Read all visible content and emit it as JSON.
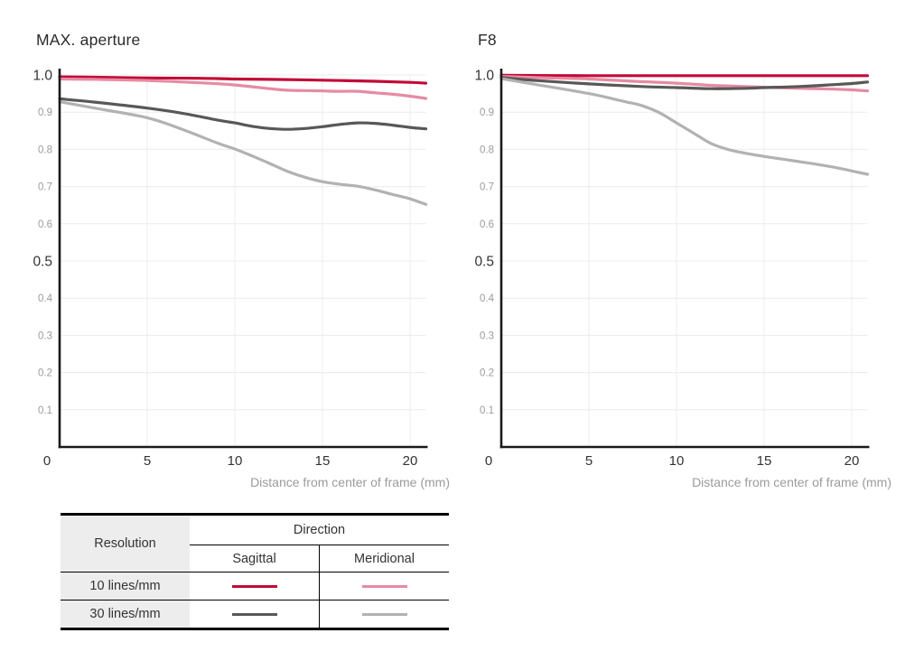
{
  "chart_data": [
    {
      "type": "line",
      "title": "MAX. aperture",
      "xlabel": "Distance from center of frame (mm)",
      "xlim": [
        0,
        20.9
      ],
      "ylim": [
        0,
        1.0
      ],
      "grid": true,
      "x_ticks": [
        {
          "value": 0,
          "label": "0"
        },
        {
          "value": 5,
          "label": "5"
        },
        {
          "value": 10,
          "label": "10"
        },
        {
          "value": 15,
          "label": "15"
        },
        {
          "value": 20,
          "label": "20"
        }
      ],
      "y_ticks": [
        {
          "value": 1.0,
          "label": "1.0",
          "major": true
        },
        {
          "value": 0.9,
          "label": "0.9",
          "major": false
        },
        {
          "value": 0.8,
          "label": "0.8",
          "major": false
        },
        {
          "value": 0.7,
          "label": "0.7",
          "major": false
        },
        {
          "value": 0.6,
          "label": "0.6",
          "major": false
        },
        {
          "value": 0.5,
          "label": "0.5",
          "major": true
        },
        {
          "value": 0.4,
          "label": "0.4",
          "major": false
        },
        {
          "value": 0.3,
          "label": "0.3",
          "major": false
        },
        {
          "value": 0.2,
          "label": "0.2",
          "major": false
        },
        {
          "value": 0.1,
          "label": "0.1",
          "major": false
        }
      ],
      "series": [
        {
          "name": "10 lines/mm Sagittal",
          "resolution": "10 lines/mm",
          "direction": "Sagittal",
          "color": "#c20a38",
          "points": [
            [
              0,
              0.995
            ],
            [
              2,
              0.994
            ],
            [
              5,
              0.992
            ],
            [
              8,
              0.991
            ],
            [
              10,
              0.989
            ],
            [
              12,
              0.988
            ],
            [
              15,
              0.986
            ],
            [
              18,
              0.983
            ],
            [
              20,
              0.98
            ],
            [
              20.9,
              0.978
            ]
          ]
        },
        {
          "name": "10 lines/mm Meridional",
          "resolution": "10 lines/mm",
          "direction": "Meridional",
          "color": "#e68ba2",
          "points": [
            [
              0,
              0.989
            ],
            [
              2,
              0.988
            ],
            [
              5,
              0.985
            ],
            [
              8,
              0.979
            ],
            [
              10,
              0.973
            ],
            [
              12,
              0.963
            ],
            [
              13,
              0.959
            ],
            [
              14,
              0.958
            ],
            [
              15,
              0.957
            ],
            [
              16,
              0.956
            ],
            [
              17,
              0.956
            ],
            [
              18,
              0.952
            ],
            [
              19,
              0.948
            ],
            [
              20,
              0.943
            ],
            [
              20.9,
              0.937
            ]
          ]
        },
        {
          "name": "30 lines/mm Sagittal",
          "resolution": "30 lines/mm",
          "direction": "Sagittal",
          "color": "#585858",
          "points": [
            [
              0,
              0.936
            ],
            [
              2,
              0.927
            ],
            [
              5,
              0.911
            ],
            [
              7,
              0.897
            ],
            [
              9,
              0.879
            ],
            [
              10,
              0.871
            ],
            [
              11,
              0.862
            ],
            [
              12,
              0.856
            ],
            [
              13,
              0.854
            ],
            [
              14,
              0.856
            ],
            [
              15,
              0.861
            ],
            [
              16,
              0.867
            ],
            [
              17,
              0.871
            ],
            [
              18,
              0.87
            ],
            [
              19,
              0.865
            ],
            [
              20,
              0.859
            ],
            [
              20.9,
              0.855
            ]
          ]
        },
        {
          "name": "30 lines/mm Meridional",
          "resolution": "30 lines/mm",
          "direction": "Meridional",
          "color": "#b2b2b2",
          "points": [
            [
              0,
              0.928
            ],
            [
              2,
              0.911
            ],
            [
              5,
              0.885
            ],
            [
              7,
              0.854
            ],
            [
              9,
              0.817
            ],
            [
              10,
              0.801
            ],
            [
              11,
              0.782
            ],
            [
              12,
              0.762
            ],
            [
              13,
              0.741
            ],
            [
              14,
              0.725
            ],
            [
              15,
              0.713
            ],
            [
              16,
              0.706
            ],
            [
              17,
              0.701
            ],
            [
              18,
              0.691
            ],
            [
              19,
              0.679
            ],
            [
              20,
              0.667
            ],
            [
              20.9,
              0.652
            ]
          ]
        }
      ]
    },
    {
      "type": "line",
      "title": "F8",
      "xlabel": "Distance from center of frame (mm)",
      "xlim": [
        0,
        20.9
      ],
      "ylim": [
        0,
        1.0
      ],
      "grid": true,
      "x_ticks": [
        {
          "value": 0,
          "label": "0"
        },
        {
          "value": 5,
          "label": "5"
        },
        {
          "value": 10,
          "label": "10"
        },
        {
          "value": 15,
          "label": "15"
        },
        {
          "value": 20,
          "label": "20"
        }
      ],
      "y_ticks": [
        {
          "value": 1.0,
          "label": "1.0",
          "major": true
        },
        {
          "value": 0.9,
          "label": "0.9",
          "major": false
        },
        {
          "value": 0.8,
          "label": "0.8",
          "major": false
        },
        {
          "value": 0.7,
          "label": "0.7",
          "major": false
        },
        {
          "value": 0.6,
          "label": "0.6",
          "major": false
        },
        {
          "value": 0.5,
          "label": "0.5",
          "major": true
        },
        {
          "value": 0.4,
          "label": "0.4",
          "major": false
        },
        {
          "value": 0.3,
          "label": "0.3",
          "major": false
        },
        {
          "value": 0.2,
          "label": "0.2",
          "major": false
        },
        {
          "value": 0.1,
          "label": "0.1",
          "major": false
        }
      ],
      "series": [
        {
          "name": "10 lines/mm Sagittal",
          "resolution": "10 lines/mm",
          "direction": "Sagittal",
          "color": "#c20a38",
          "points": [
            [
              0,
              0.999
            ],
            [
              5,
              0.998
            ],
            [
              10,
              0.998
            ],
            [
              15,
              0.998
            ],
            [
              20,
              0.998
            ],
            [
              20.9,
              0.998
            ]
          ]
        },
        {
          "name": "10 lines/mm Meridional",
          "resolution": "10 lines/mm",
          "direction": "Meridional",
          "color": "#e68ba2",
          "points": [
            [
              0,
              0.996
            ],
            [
              2,
              0.993
            ],
            [
              5,
              0.989
            ],
            [
              8,
              0.982
            ],
            [
              10,
              0.978
            ],
            [
              12,
              0.972
            ],
            [
              14,
              0.969
            ],
            [
              15,
              0.967
            ],
            [
              17,
              0.964
            ],
            [
              19,
              0.962
            ],
            [
              20,
              0.96
            ],
            [
              20.9,
              0.957
            ]
          ]
        },
        {
          "name": "30 lines/mm Sagittal",
          "resolution": "30 lines/mm",
          "direction": "Sagittal",
          "color": "#585858",
          "points": [
            [
              0,
              0.993
            ],
            [
              2,
              0.985
            ],
            [
              5,
              0.976
            ],
            [
              8,
              0.969
            ],
            [
              10,
              0.966
            ],
            [
              12,
              0.963
            ],
            [
              14,
              0.964
            ],
            [
              15,
              0.966
            ],
            [
              17,
              0.969
            ],
            [
              19,
              0.974
            ],
            [
              20,
              0.977
            ],
            [
              20.9,
              0.981
            ]
          ]
        },
        {
          "name": "30 lines/mm Meridional",
          "resolution": "30 lines/mm",
          "direction": "Meridional",
          "color": "#b2b2b2",
          "points": [
            [
              0,
              0.99
            ],
            [
              2,
              0.974
            ],
            [
              5,
              0.95
            ],
            [
              7,
              0.929
            ],
            [
              8,
              0.918
            ],
            [
              9,
              0.899
            ],
            [
              10,
              0.871
            ],
            [
              11,
              0.843
            ],
            [
              12,
              0.815
            ],
            [
              13,
              0.799
            ],
            [
              14,
              0.789
            ],
            [
              15,
              0.781
            ],
            [
              16,
              0.774
            ],
            [
              17,
              0.767
            ],
            [
              18,
              0.76
            ],
            [
              19,
              0.752
            ],
            [
              20,
              0.742
            ],
            [
              20.9,
              0.733
            ]
          ]
        }
      ]
    }
  ],
  "legend": {
    "col_header": "Resolution",
    "group_header": "Direction",
    "sub_headers": [
      "Sagittal",
      "Meridional"
    ],
    "rows": [
      {
        "label": "10 lines/mm",
        "swatches": [
          "#c20a38",
          "#e68ba2"
        ]
      },
      {
        "label": "30 lines/mm",
        "swatches": [
          "#585858",
          "#b2b2b2"
        ]
      }
    ]
  },
  "colors": {
    "sagittal_10": "#c20a38",
    "meridional_10": "#e68ba2",
    "sagittal_30": "#585858",
    "meridional_30": "#b2b2b2",
    "grid": "#ececec",
    "axis": "#1a1a1a",
    "tick_label_major": "#333333",
    "tick_label_minor": "#9b9b9b",
    "axis_label": "#9b9b9b",
    "legend_header_bg": "#ededed"
  }
}
